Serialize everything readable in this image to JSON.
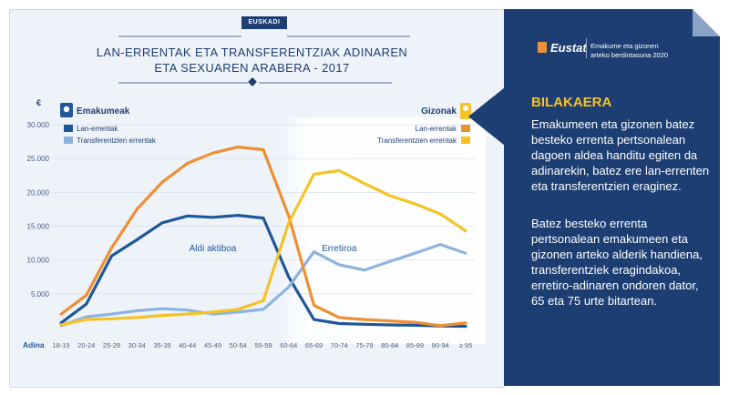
{
  "header": {
    "region_label": "EUSKADI",
    "title_line1": "LAN-ERRENTAK ETA TRANSFERENTZIAK ADINAREN",
    "title_line2": "ETA SEXUAREN ARABERA - 2017"
  },
  "sidebar": {
    "logo_text": "Eustat",
    "tagline_line1": "Emakume eta gizonen",
    "tagline_line2": "arteko berdintasuna 2020",
    "heading": "BILAKAERA",
    "paragraph1": "Emakumeen eta gizonen batez besteko errenta pertsonalean dagoen aldea handitu egiten da adinarekin, batez ere lan-errenten eta transferentzien eraginez.",
    "paragraph2": "Batez besteko errenta pertsonalean emakumeen eta gizonen arteko alderik handiena, transferentziek eragindakoa, erretiro-adinaren ondoren dator, 65 eta 75 urte bitartean."
  },
  "colors": {
    "women_labor": "#1f5799",
    "women_transfers": "#8db4df",
    "men_labor": "#ee8f31",
    "men_transfers": "#f6c324",
    "navy": "#1d3e72"
  },
  "chart_data": {
    "type": "line",
    "ylabel": "€",
    "xlabel": "Adina",
    "ylim": [
      0,
      30000
    ],
    "yticks": [
      "5.000",
      "10.000",
      "15.000",
      "20.000",
      "25.000",
      "30.000"
    ],
    "categories": [
      "18-19",
      "20-24",
      "25-29",
      "30-34",
      "35-39",
      "40-44",
      "45-49",
      "50-54",
      "55-59",
      "60-64",
      "65-69",
      "70-74",
      "75-79",
      "80-84",
      "85-89",
      "90-94",
      "≥ 95"
    ],
    "groups": [
      {
        "label": "Emakumeak",
        "icon": "woman-icon",
        "legend": [
          "Lan-errentak",
          "Transferentzien errentak"
        ]
      },
      {
        "label": "Gizonak",
        "icon": "man-icon",
        "legend": [
          "Lan-errentak",
          "Transferentzien errentak"
        ]
      }
    ],
    "series": [
      {
        "name": "Emakumeak Lan-errentak",
        "color": "#1f5799",
        "values": [
          700,
          3500,
          10600,
          13000,
          15500,
          16500,
          16300,
          16600,
          16200,
          7500,
          1200,
          600,
          500,
          400,
          350,
          250,
          200
        ]
      },
      {
        "name": "Emakumeak Transferentzien errentak",
        "color": "#8db4df",
        "values": [
          300,
          1600,
          2000,
          2500,
          2800,
          2600,
          2000,
          2300,
          2700,
          6000,
          11200,
          9300,
          8500,
          9800,
          11000,
          12300,
          11000
        ]
      },
      {
        "name": "Gizonak Lan-errentak",
        "color": "#ee8f31",
        "values": [
          2000,
          4800,
          11800,
          17500,
          21500,
          24300,
          25800,
          26700,
          26300,
          16500,
          3300,
          1500,
          1200,
          1000,
          800,
          300,
          700
        ]
      },
      {
        "name": "Gizonak Transferentzien errentak",
        "color": "#f6c324",
        "values": [
          400,
          1200,
          1300,
          1500,
          1800,
          2000,
          2300,
          2700,
          4000,
          15500,
          22700,
          23200,
          21300,
          19500,
          18300,
          16800,
          14300
        ]
      }
    ],
    "annotations": [
      {
        "text": "Aldi aktiboa",
        "x_category": "45-49",
        "y": 11000
      },
      {
        "text": "Erretiroa",
        "x_category": "70-74",
        "y": 11000
      }
    ],
    "shaded_region": {
      "from": "60-64",
      "to": "≥ 95"
    },
    "grid": true
  }
}
